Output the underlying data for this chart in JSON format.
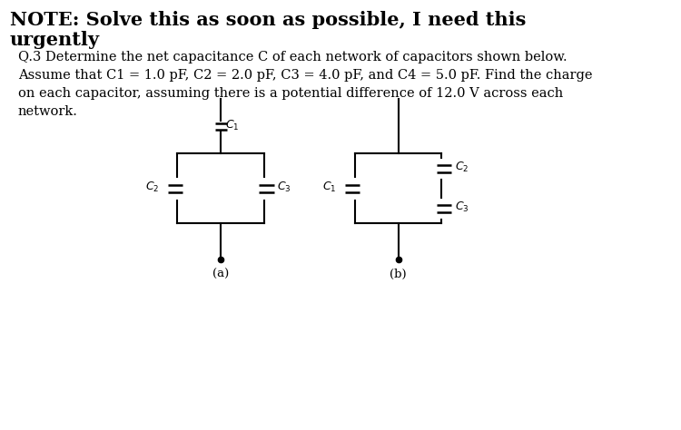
{
  "title_line1": "NOTE: Solve this as soon as possible, I need this",
  "title_line2": "urgently",
  "body_text": "Q.3 Determine the net capacitance C of each network of capacitors shown below.\nAssume that C1 = 1.0 pF, C2 = 2.0 pF, C3 = 4.0 pF, and C4 = 5.0 pF. Find the charge\non each capacitor, assuming there is a potential difference of 12.0 V across each\nnetwork.",
  "label_a": "(a)",
  "label_b": "(b)",
  "bg_color": "#ffffff",
  "line_color": "#000000",
  "font_color": "#000000",
  "title_fontsize": 15,
  "body_fontsize": 10.5,
  "label_fontsize": 9
}
